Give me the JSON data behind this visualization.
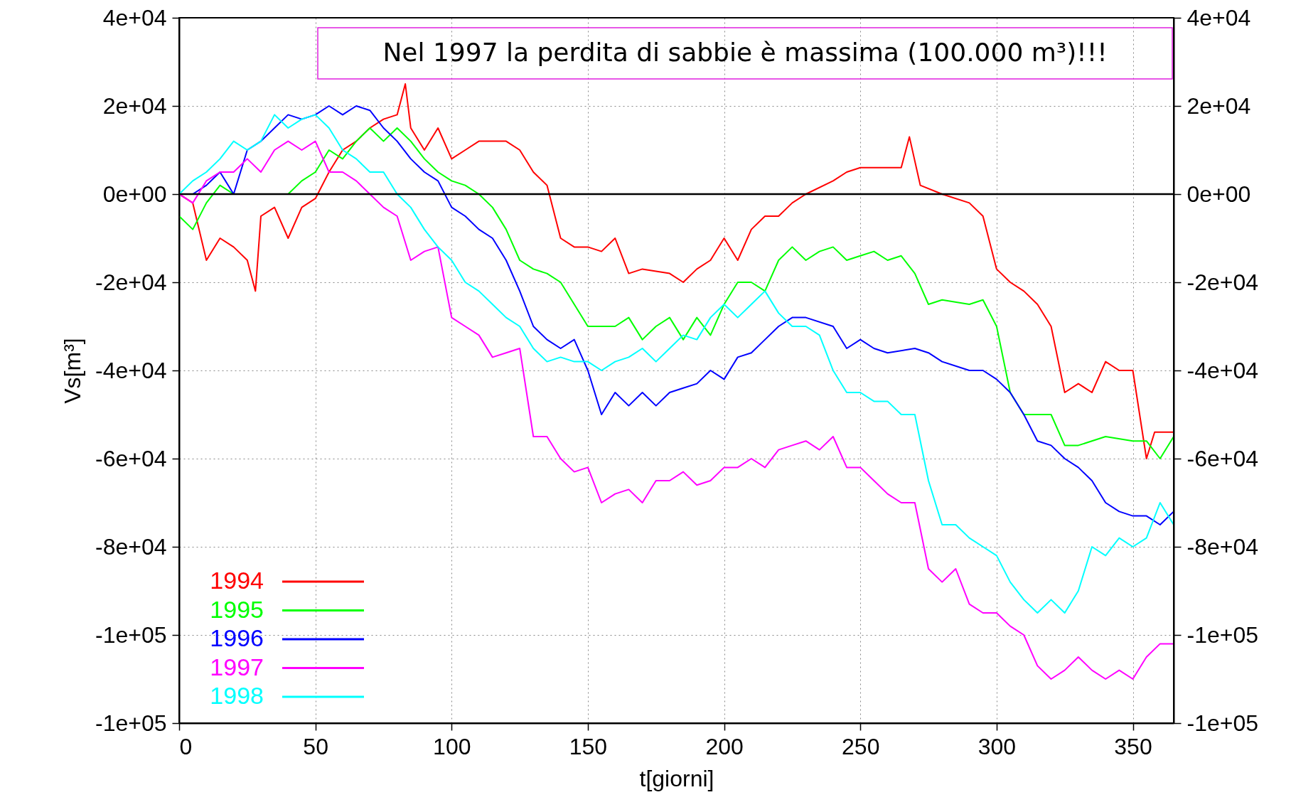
{
  "chart_data": {
    "type": "line",
    "xlabel": "t[giorni]",
    "ylabel": "Vs[m³]",
    "annotations": [
      "Nel 1997 la perdita di sabbie  è massima (100.000 m³)!!!"
    ],
    "xlim": [
      0,
      365
    ],
    "xticks": [
      0,
      50,
      100,
      150,
      200,
      250,
      300,
      350
    ],
    "ylim": [
      -120000,
      40000
    ],
    "yticks": [
      {
        "value": 40000,
        "label": "4e+04"
      },
      {
        "value": 20000,
        "label": "2e+04"
      },
      {
        "value": 0,
        "label": "0e+00"
      },
      {
        "value": -20000,
        "label": "-2e+04"
      },
      {
        "value": -40000,
        "label": "-4e+04"
      },
      {
        "value": -60000,
        "label": "-6e+04"
      },
      {
        "value": -80000,
        "label": "-8e+04"
      },
      {
        "value": -100000,
        "label": "-1e+05"
      },
      {
        "value": -120000,
        "label": "-1e+05"
      }
    ],
    "y2lim": [
      -120000,
      40000
    ],
    "y2ticks": [
      {
        "value": 40000,
        "label": "4e+04"
      },
      {
        "value": 20000,
        "label": "2e+04"
      },
      {
        "value": 0,
        "label": "0e+00"
      },
      {
        "value": -20000,
        "label": "-2e+04"
      },
      {
        "value": -40000,
        "label": "-4e+04"
      },
      {
        "value": -60000,
        "label": "-6e+04"
      },
      {
        "value": -80000,
        "label": "-8e+04"
      },
      {
        "value": -100000,
        "label": "-1e+05"
      },
      {
        "value": -120000,
        "label": "-1e+05"
      }
    ],
    "grid": true,
    "legend": "bottom left",
    "marker": "none",
    "line_style": "solid",
    "ref_lines": [
      {
        "axis": "y",
        "value": 0,
        "color": "#000000"
      }
    ],
    "series": [
      {
        "name": "1994",
        "color": "#ff0000",
        "x": [
          0,
          5,
          10,
          15,
          20,
          25,
          28,
          30,
          35,
          40,
          45,
          50,
          55,
          60,
          65,
          70,
          75,
          80,
          83,
          85,
          90,
          95,
          100,
          105,
          110,
          120,
          125,
          130,
          135,
          140,
          145,
          150,
          155,
          160,
          165,
          170,
          180,
          185,
          190,
          195,
          200,
          205,
          210,
          215,
          220,
          225,
          230,
          240,
          245,
          250,
          260,
          265,
          268,
          272,
          280,
          290,
          295,
          300,
          305,
          310,
          315,
          320,
          325,
          330,
          335,
          340,
          345,
          350,
          355,
          358,
          365
        ],
        "values": [
          0,
          -2000,
          -15000,
          -10000,
          -12000,
          -15000,
          -22000,
          -5000,
          -3000,
          -10000,
          -3000,
          -1000,
          5000,
          10000,
          12000,
          15000,
          17000,
          18000,
          25000,
          15000,
          10000,
          15000,
          8000,
          10000,
          12000,
          12000,
          10000,
          5000,
          2000,
          -10000,
          -12000,
          -12000,
          -13000,
          -10000,
          -18000,
          -17000,
          -18000,
          -20000,
          -17000,
          -15000,
          -10000,
          -15000,
          -8000,
          -5000,
          -5000,
          -2000,
          0,
          3000,
          5000,
          6000,
          6000,
          6000,
          13000,
          2000,
          0,
          -2000,
          -5000,
          -17000,
          -20000,
          -22000,
          -25000,
          -30000,
          -45000,
          -43000,
          -45000,
          -38000,
          -40000,
          -40000,
          -60000,
          -54000,
          -54000
        ]
      },
      {
        "name": "1995",
        "color": "#00ff00",
        "x": [
          0,
          5,
          10,
          15,
          20,
          25,
          30,
          35,
          40,
          45,
          50,
          55,
          60,
          65,
          70,
          75,
          80,
          85,
          90,
          95,
          100,
          105,
          110,
          115,
          120,
          125,
          130,
          135,
          140,
          145,
          150,
          155,
          160,
          165,
          170,
          175,
          180,
          185,
          190,
          195,
          200,
          205,
          210,
          215,
          220,
          225,
          230,
          235,
          240,
          245,
          250,
          255,
          260,
          265,
          270,
          275,
          280,
          290,
          295,
          300,
          305,
          310,
          315,
          320,
          325,
          330,
          340,
          350,
          355,
          360,
          365
        ],
        "values": [
          -5000,
          -8000,
          -2000,
          2000,
          0,
          0,
          0,
          0,
          0,
          3000,
          5000,
          10000,
          8000,
          12000,
          15000,
          12000,
          15000,
          12000,
          8000,
          5000,
          3000,
          2000,
          0,
          -3000,
          -8000,
          -15000,
          -17000,
          -18000,
          -20000,
          -25000,
          -30000,
          -30000,
          -30000,
          -28000,
          -33000,
          -30000,
          -28000,
          -33000,
          -28000,
          -32000,
          -25000,
          -20000,
          -20000,
          -22000,
          -15000,
          -12000,
          -15000,
          -13000,
          -12000,
          -15000,
          -14000,
          -13000,
          -15000,
          -14000,
          -18000,
          -25000,
          -24000,
          -25000,
          -24000,
          -30000,
          -45000,
          -50000,
          -50000,
          -50000,
          -57000,
          -57000,
          -55000,
          -56000,
          -56000,
          -60000,
          -55000
        ]
      },
      {
        "name": "1996",
        "color": "#0000ff",
        "x": [
          0,
          5,
          10,
          15,
          20,
          25,
          30,
          35,
          40,
          45,
          50,
          55,
          60,
          65,
          70,
          75,
          80,
          85,
          90,
          95,
          100,
          105,
          110,
          115,
          120,
          125,
          130,
          135,
          140,
          145,
          150,
          155,
          160,
          165,
          170,
          175,
          180,
          185,
          190,
          195,
          200,
          205,
          210,
          215,
          220,
          225,
          230,
          240,
          245,
          250,
          255,
          260,
          270,
          275,
          280,
          290,
          295,
          300,
          305,
          310,
          315,
          320,
          325,
          330,
          335,
          340,
          345,
          350,
          355,
          360,
          365
        ],
        "values": [
          0,
          0,
          2000,
          5000,
          0,
          10000,
          12000,
          15000,
          18000,
          17000,
          18000,
          20000,
          18000,
          20000,
          19000,
          15000,
          12000,
          8000,
          5000,
          3000,
          -3000,
          -5000,
          -8000,
          -10000,
          -15000,
          -22000,
          -30000,
          -33000,
          -35000,
          -33000,
          -40000,
          -50000,
          -45000,
          -48000,
          -45000,
          -48000,
          -45000,
          -44000,
          -43000,
          -40000,
          -42000,
          -37000,
          -36000,
          -33000,
          -30000,
          -28000,
          -28000,
          -30000,
          -35000,
          -33000,
          -35000,
          -36000,
          -35000,
          -36000,
          -38000,
          -40000,
          -40000,
          -42000,
          -45000,
          -50000,
          -56000,
          -57000,
          -60000,
          -62000,
          -65000,
          -70000,
          -72000,
          -73000,
          -73000,
          -75000,
          -72000
        ]
      },
      {
        "name": "1997",
        "color": "#ff00ff",
        "x": [
          0,
          5,
          10,
          15,
          20,
          25,
          30,
          35,
          40,
          45,
          50,
          55,
          60,
          65,
          70,
          75,
          80,
          85,
          90,
          95,
          100,
          105,
          110,
          115,
          120,
          125,
          130,
          135,
          140,
          145,
          150,
          155,
          160,
          165,
          170,
          175,
          180,
          185,
          190,
          195,
          200,
          205,
          210,
          215,
          220,
          225,
          230,
          235,
          240,
          245,
          250,
          255,
          260,
          265,
          270,
          275,
          280,
          285,
          290,
          295,
          300,
          305,
          310,
          315,
          320,
          325,
          330,
          335,
          340,
          345,
          350,
          355,
          360,
          365
        ],
        "values": [
          0,
          -2000,
          3000,
          5000,
          5000,
          8000,
          5000,
          10000,
          12000,
          10000,
          12000,
          5000,
          5000,
          3000,
          0,
          -3000,
          -5000,
          -15000,
          -13000,
          -12000,
          -28000,
          -30000,
          -32000,
          -37000,
          -36000,
          -35000,
          -55000,
          -55000,
          -60000,
          -63000,
          -62000,
          -70000,
          -68000,
          -67000,
          -70000,
          -65000,
          -65000,
          -63000,
          -66000,
          -65000,
          -62000,
          -62000,
          -60000,
          -62000,
          -58000,
          -57000,
          -56000,
          -58000,
          -55000,
          -62000,
          -62000,
          -65000,
          -68000,
          -70000,
          -70000,
          -85000,
          -88000,
          -85000,
          -93000,
          -95000,
          -95000,
          -98000,
          -100000,
          -107000,
          -110000,
          -108000,
          -105000,
          -108000,
          -110000,
          -108000,
          -110000,
          -105000,
          -102000,
          -102000
        ]
      },
      {
        "name": "1998",
        "color": "#00ffff",
        "x": [
          0,
          5,
          10,
          15,
          20,
          25,
          30,
          35,
          40,
          45,
          50,
          55,
          60,
          65,
          70,
          75,
          80,
          85,
          90,
          95,
          100,
          105,
          110,
          115,
          120,
          125,
          130,
          135,
          140,
          145,
          150,
          155,
          160,
          165,
          170,
          175,
          180,
          185,
          190,
          195,
          200,
          205,
          210,
          215,
          220,
          225,
          230,
          235,
          240,
          245,
          250,
          255,
          260,
          265,
          270,
          275,
          280,
          285,
          290,
          295,
          300,
          305,
          310,
          315,
          320,
          325,
          330,
          335,
          340,
          345,
          350,
          355,
          360,
          365
        ],
        "values": [
          0,
          3000,
          5000,
          8000,
          12000,
          10000,
          12000,
          18000,
          15000,
          17000,
          18000,
          15000,
          10000,
          8000,
          5000,
          5000,
          0,
          -3000,
          -8000,
          -12000,
          -15000,
          -20000,
          -22000,
          -25000,
          -28000,
          -30000,
          -35000,
          -38000,
          -37000,
          -38000,
          -38000,
          -40000,
          -38000,
          -37000,
          -35000,
          -38000,
          -35000,
          -32000,
          -33000,
          -28000,
          -25000,
          -28000,
          -25000,
          -22000,
          -27000,
          -30000,
          -30000,
          -32000,
          -40000,
          -45000,
          -45000,
          -47000,
          -47000,
          -50000,
          -50000,
          -65000,
          -75000,
          -75000,
          -78000,
          -80000,
          -82000,
          -88000,
          -92000,
          -95000,
          -92000,
          -95000,
          -90000,
          -80000,
          -82000,
          -78000,
          -80000,
          -78000,
          -70000,
          -75000
        ]
      }
    ]
  }
}
